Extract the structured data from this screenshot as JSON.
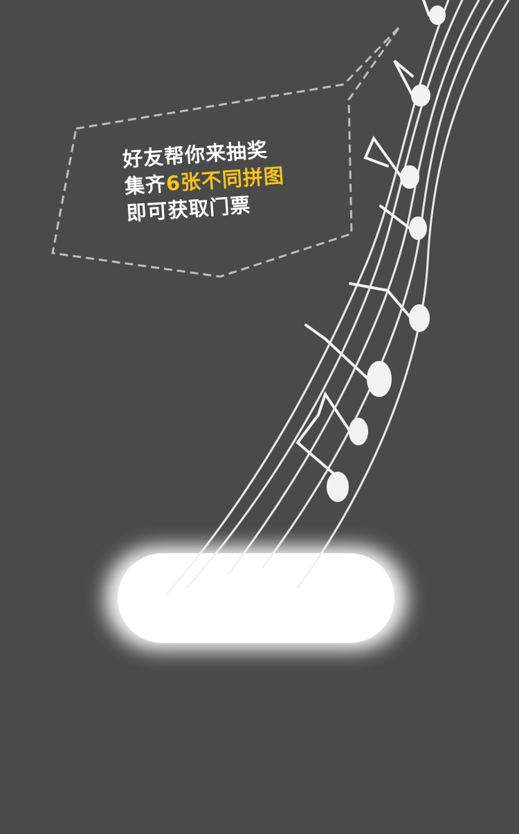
{
  "tip": {
    "line1": "好友帮你来抽奖",
    "line2_prefix": "集齐",
    "line2_highlight": "6张不同拼图",
    "line3": "即可获取门票"
  },
  "colors": {
    "background": "#4a4a4a",
    "highlight": "#f7c31b",
    "text": "#ffffff",
    "dash": "#bdbdbd"
  },
  "icons": {
    "staff": "music-staff-icon",
    "notes": "music-note-icon",
    "spotlight": "spotlight-glow"
  }
}
